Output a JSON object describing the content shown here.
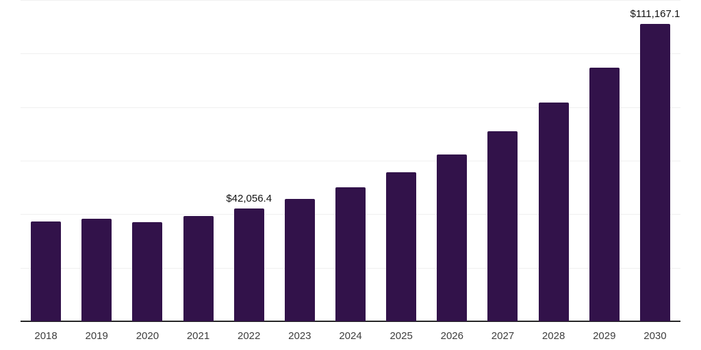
{
  "chart_data": {
    "type": "bar",
    "title": "",
    "xlabel": "",
    "ylabel": "",
    "categories": [
      "2018",
      "2019",
      "2020",
      "2021",
      "2022",
      "2023",
      "2024",
      "2025",
      "2026",
      "2027",
      "2028",
      "2029",
      "2030"
    ],
    "values": [
      37200,
      38400,
      36900,
      39300,
      42056.4,
      45800,
      50100,
      55600,
      62400,
      71000,
      81800,
      94700,
      111167.1
    ],
    "value_labels": [
      {
        "category": "2022",
        "text": "$42,056.4"
      },
      {
        "category": "2030",
        "text": "$111,167.1"
      }
    ],
    "ylim": [
      0,
      120000
    ],
    "gridline_step": 20000,
    "grid": "horizontal-only",
    "legend": "none",
    "y_tick_labels_visible": false,
    "colors": {
      "bar": "#32124a",
      "grid_line": "#f0f0f0",
      "axis_line": "#262626",
      "tick_label": "#3d3d3d",
      "data_label": "#121212",
      "background": "#ffffff"
    }
  }
}
